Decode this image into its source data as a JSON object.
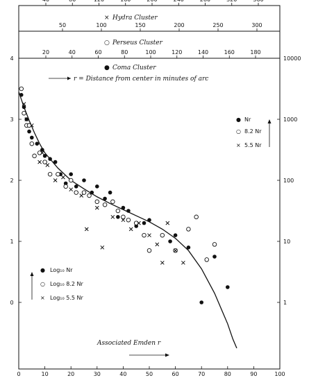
{
  "chart_data": {
    "type": "scatter",
    "xlabel": "Associated Emden r",
    "x_ticks": [
      0,
      10,
      20,
      30,
      40,
      50,
      60,
      70,
      80,
      90,
      100
    ],
    "xlim": [
      0,
      100
    ],
    "y_ticks": [
      0,
      1,
      2,
      3,
      4
    ],
    "ylim": [
      -0.7,
      4
    ],
    "y_right_ticks": [
      "1",
      "10",
      "100",
      "1000",
      "10000"
    ],
    "note": "r = Distance from center in minutes of arc",
    "top_axes": [
      {
        "label": "Hydra Cluster",
        "marker": "×",
        "ticks": [
          "40",
          "80",
          "120",
          "160",
          "200",
          "240",
          "280",
          "320",
          "360"
        ]
      },
      {
        "label": "Perseus Cluster",
        "marker": "○",
        "ticks": [
          "50",
          "100",
          "150",
          "200",
          "250",
          "300"
        ]
      },
      {
        "label": "Coma Cluster",
        "marker": "●",
        "ticks": [
          "20",
          "40",
          "60",
          "80",
          "100",
          "120",
          "140",
          "160",
          "180"
        ]
      }
    ],
    "legend_left": [
      {
        "marker": "●",
        "text": "Log₁₀ Nr"
      },
      {
        "marker": "○",
        "text": "Log₁₀ 8.2 Nr"
      },
      {
        "marker": "×",
        "text": "Log₁₀ 5.5 Nr"
      }
    ],
    "legend_right": [
      {
        "marker": "●",
        "text": "Nr"
      },
      {
        "marker": "○",
        "text": "8.2 Nr"
      },
      {
        "marker": "×",
        "text": "5.5 Nr"
      }
    ],
    "series": [
      {
        "marker": "filled-circle",
        "x": [
          1,
          2,
          3,
          4,
          5,
          7,
          9,
          10,
          12,
          14,
          16,
          18,
          20,
          22,
          25,
          28,
          30,
          33,
          35,
          38,
          40,
          42,
          45,
          48,
          50,
          58,
          60,
          65,
          70,
          75,
          80
        ],
        "y": [
          3.4,
          3.2,
          3.0,
          2.8,
          2.7,
          2.6,
          2.5,
          2.4,
          2.35,
          2.3,
          2.1,
          1.95,
          2.1,
          1.9,
          2.0,
          1.8,
          1.9,
          1.7,
          1.8,
          1.4,
          1.55,
          1.5,
          1.25,
          1.3,
          1.35,
          1.0,
          1.1,
          0.9,
          0.0,
          0.75,
          0.25
        ]
      },
      {
        "marker": "open-circle",
        "x": [
          1,
          2,
          3,
          4,
          5,
          6,
          8,
          10,
          12,
          15,
          18,
          20,
          22,
          25,
          27,
          30,
          33,
          36,
          38,
          40,
          42,
          45,
          48,
          50,
          55,
          60,
          65,
          68,
          72,
          75
        ],
        "y": [
          3.5,
          3.1,
          2.9,
          2.9,
          2.6,
          2.4,
          2.45,
          2.3,
          2.1,
          2.1,
          1.9,
          2.0,
          1.8,
          1.8,
          1.75,
          1.65,
          1.6,
          1.65,
          1.5,
          1.4,
          1.35,
          1.3,
          1.1,
          0.85,
          1.1,
          0.85,
          1.2,
          1.4,
          0.7,
          0.95
        ]
      },
      {
        "marker": "cross",
        "x": [
          2,
          3,
          5,
          8,
          9,
          11,
          14,
          17,
          20,
          24,
          26,
          30,
          32,
          36,
          40,
          43,
          46,
          50,
          53,
          55,
          57,
          60,
          63
        ],
        "y": [
          3.25,
          3.0,
          2.9,
          2.3,
          2.45,
          2.25,
          2.0,
          2.05,
          1.85,
          1.75,
          1.2,
          1.55,
          0.9,
          1.4,
          1.35,
          1.2,
          1.3,
          1.1,
          0.95,
          0.65,
          1.3,
          0.85,
          0.65
        ]
      }
    ],
    "curve": {
      "x": [
        0,
        2,
        4,
        6,
        8,
        10,
        15,
        20,
        25,
        30,
        35,
        40,
        45,
        50,
        55,
        60,
        65,
        70,
        75,
        78,
        80,
        82,
        83.5
      ],
      "y": [
        3.45,
        3.2,
        2.98,
        2.78,
        2.6,
        2.45,
        2.2,
        2.0,
        1.86,
        1.73,
        1.62,
        1.52,
        1.42,
        1.32,
        1.2,
        1.05,
        0.85,
        0.55,
        0.15,
        -0.15,
        -0.35,
        -0.6,
        -0.75
      ]
    }
  }
}
